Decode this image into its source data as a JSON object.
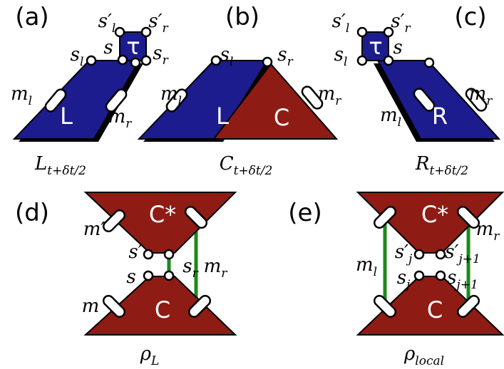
{
  "panels": [
    {
      "label": "(a)",
      "tensors": [
        "L",
        "τ"
      ],
      "indices": [
        {
          "text": "s′",
          "sub": "l"
        },
        {
          "text": "s′",
          "sub": "r"
        },
        {
          "text": "s",
          "sub": "l"
        },
        {
          "text": "s"
        },
        {
          "text": "s",
          "sub": "r"
        },
        {
          "text": "m",
          "sub": "l"
        },
        {
          "text": "m",
          "sub": "r"
        }
      ],
      "caption": {
        "text": "L",
        "sub": "t+δt/2"
      }
    },
    {
      "label": "(b)",
      "tensors": [
        "L",
        "C"
      ],
      "indices": [
        {
          "text": "s",
          "sub": "l"
        },
        {
          "text": "s",
          "sub": "r"
        },
        {
          "text": "m",
          "sub": "l"
        },
        {
          "text": "m",
          "sub": "r"
        }
      ],
      "caption": {
        "text": "C",
        "sub": "t+δt/2"
      }
    },
    {
      "label": "(c)",
      "tensors": [
        "R",
        "τ"
      ],
      "indices": [
        {
          "text": "s′",
          "sub": "l"
        },
        {
          "text": "s′",
          "sub": "r"
        },
        {
          "text": "s",
          "sub": "l"
        },
        {
          "text": "s"
        },
        {
          "text": "m",
          "sub": "l"
        },
        {
          "text": "m",
          "sub": "r"
        }
      ],
      "caption": {
        "text": "R",
        "sub": "t+δt/2"
      }
    },
    {
      "label": "(d)",
      "tensors": [
        "C*",
        "C"
      ],
      "indices": [
        {
          "text": "m′"
        },
        {
          "text": "s′"
        },
        {
          "text": "s",
          "sub": "r"
        },
        {
          "text": "m",
          "sub": "r"
        },
        {
          "text": "s"
        },
        {
          "text": "m"
        }
      ],
      "caption": {
        "text": "ρ",
        "sub": "L"
      }
    },
    {
      "label": "(e)",
      "tensors": [
        "C*",
        "C"
      ],
      "indices": [
        {
          "text": "m",
          "sub": "l"
        },
        {
          "text": "s′",
          "sub": "j"
        },
        {
          "text": "s′",
          "sub": "j+1"
        },
        {
          "text": "m",
          "sub": "r"
        },
        {
          "text": "s",
          "sub": "j"
        },
        {
          "text": "s",
          "sub": "j+1"
        }
      ],
      "caption": {
        "text": "ρ",
        "sub": "local"
      }
    }
  ]
}
